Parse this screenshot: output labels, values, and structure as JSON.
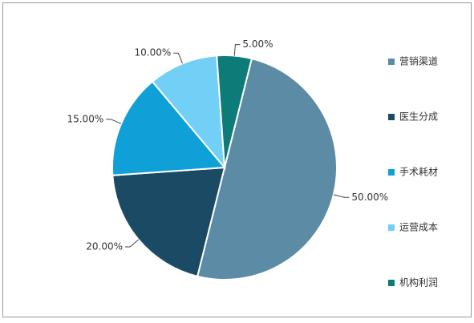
{
  "chart_data": {
    "type": "pie",
    "categories": [
      "营销渠道",
      "医生分成",
      "手术耗材",
      "运营成本",
      "机构利润"
    ],
    "values": [
      50,
      20,
      15,
      10,
      5
    ],
    "value_labels": [
      "50.00%",
      "20.00%",
      "15.00%",
      "10.00%",
      "5.00%"
    ],
    "colors": [
      "#5b8ba5",
      "#1b4a64",
      "#0fa0d8",
      "#72cff5",
      "#0d7b78"
    ],
    "legend": "right"
  }
}
